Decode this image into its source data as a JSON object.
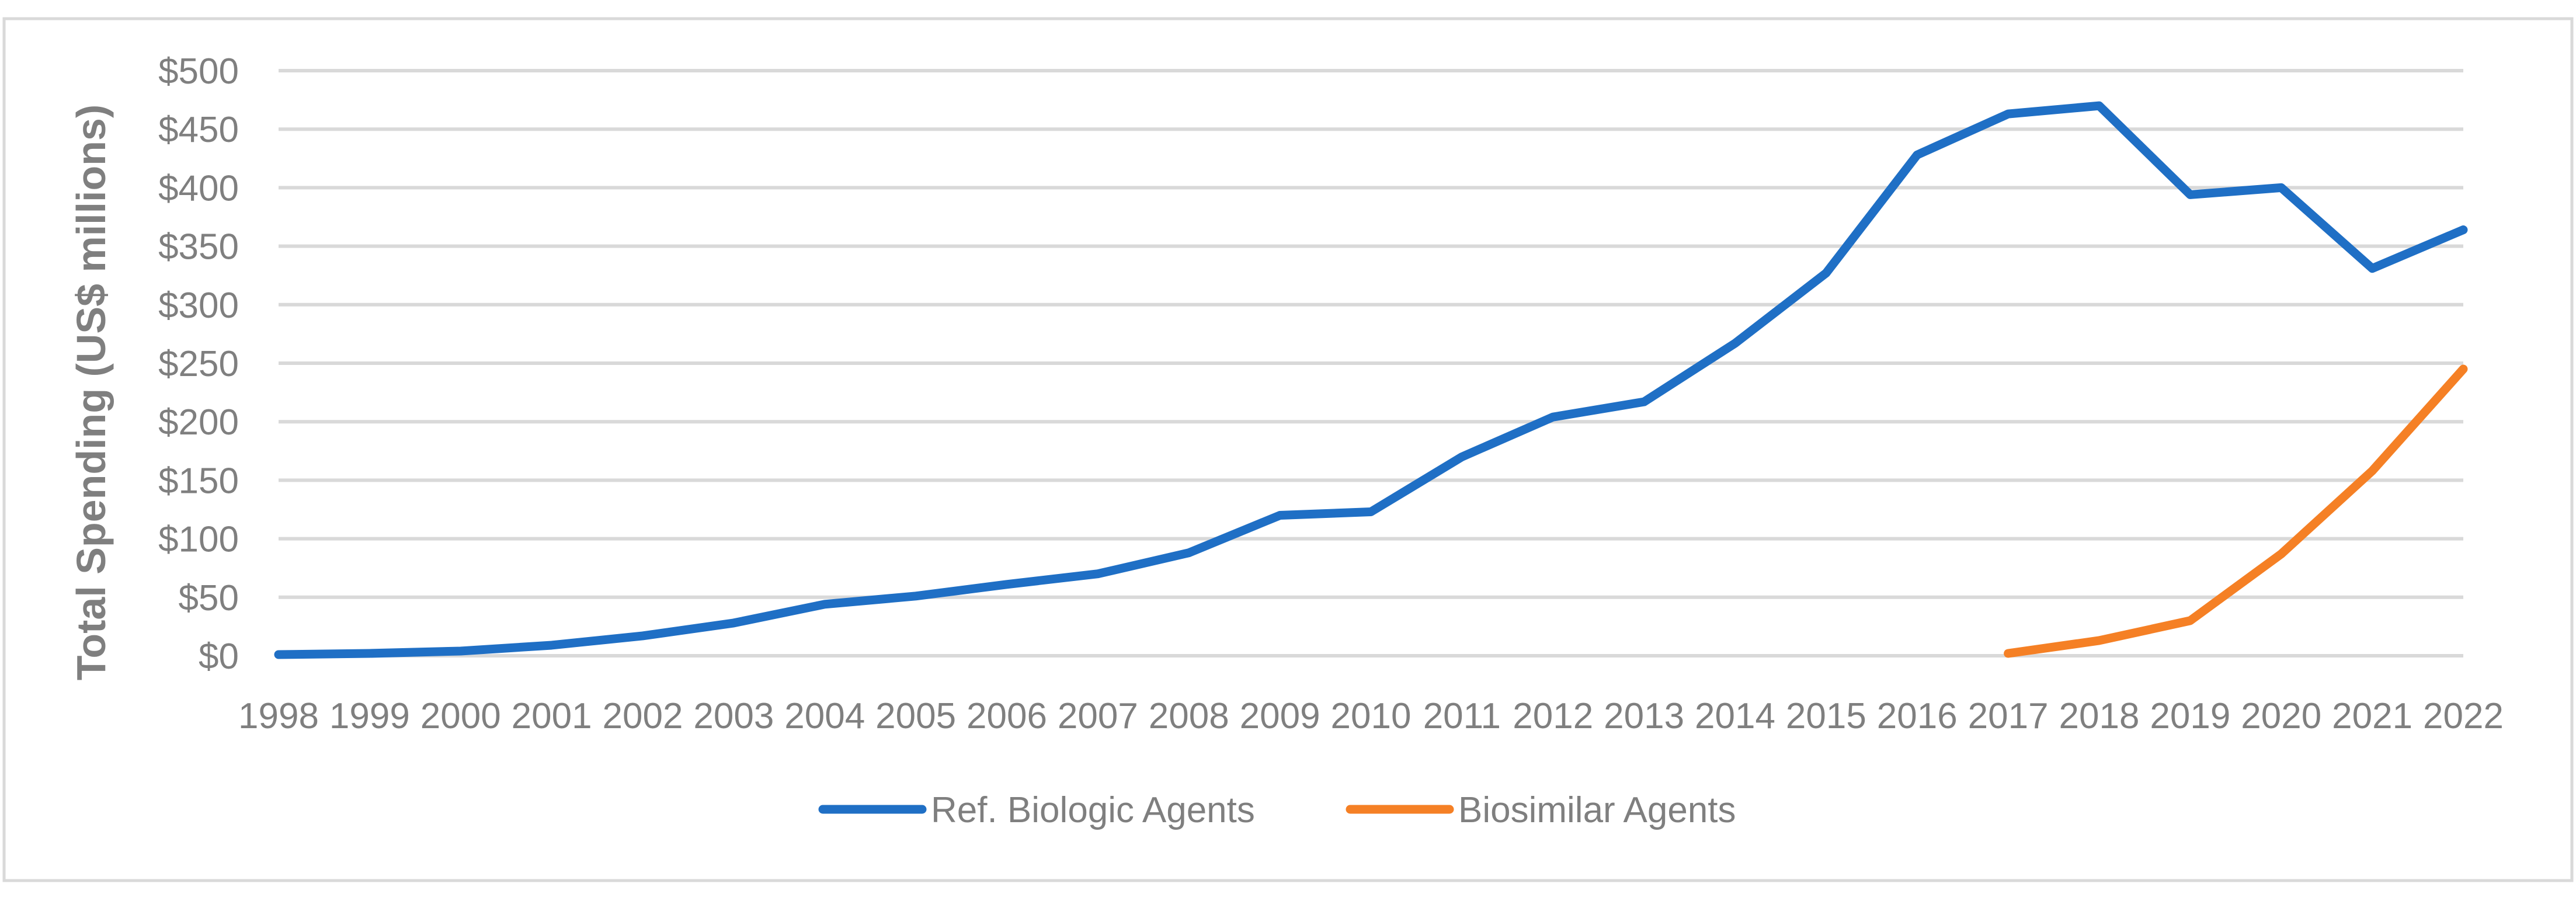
{
  "chart_data": {
    "type": "line",
    "title": "",
    "xlabel": "",
    "ylabel": "Total Spending  (US$ millions)",
    "categories": [
      "1998",
      "1999",
      "2000",
      "2001",
      "2002",
      "2003",
      "2004",
      "2005",
      "2006",
      "2007",
      "2008",
      "2009",
      "2010",
      "2011",
      "2012",
      "2013",
      "2014",
      "2015",
      "2016",
      "2017",
      "2018",
      "2019",
      "2020",
      "2021",
      "2022"
    ],
    "y_ticks": [
      "$0",
      "$50",
      "$100",
      "$150",
      "$200",
      "$250",
      "$300",
      "$350",
      "$400",
      "$450",
      "$500"
    ],
    "ylim": [
      0,
      500
    ],
    "grid": true,
    "legend_position": "bottom",
    "series": [
      {
        "name": "Ref. Biologic Agents",
        "color": "#1f6fc5",
        "values": [
          1,
          2,
          4,
          9,
          17,
          28,
          44,
          51,
          61,
          70,
          88,
          120,
          123,
          170,
          204,
          217,
          267,
          327,
          428,
          463,
          470,
          394,
          400,
          331,
          364
        ]
      },
      {
        "name": "Biosimilar Agents",
        "color": "#f58025",
        "values": [
          null,
          null,
          null,
          null,
          null,
          null,
          null,
          null,
          null,
          null,
          null,
          null,
          null,
          null,
          null,
          null,
          null,
          null,
          null,
          2,
          13,
          30,
          87,
          158,
          245
        ]
      }
    ]
  }
}
